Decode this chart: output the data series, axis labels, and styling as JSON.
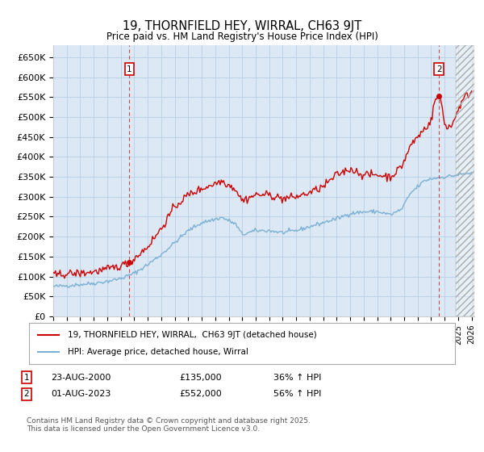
{
  "title": "19, THORNFIELD HEY, WIRRAL, CH63 9JT",
  "subtitle": "Price paid vs. HM Land Registry's House Price Index (HPI)",
  "ylim": [
    0,
    680000
  ],
  "yticks": [
    0,
    50000,
    100000,
    150000,
    200000,
    250000,
    300000,
    350000,
    400000,
    450000,
    500000,
    550000,
    600000,
    650000
  ],
  "ytick_labels": [
    "£0",
    "£50K",
    "£100K",
    "£150K",
    "£200K",
    "£250K",
    "£300K",
    "£350K",
    "£400K",
    "£450K",
    "£500K",
    "£550K",
    "£600K",
    "£650K"
  ],
  "xlim_start": 1995.0,
  "xlim_end": 2026.2,
  "background_color": "#ffffff",
  "plot_bg_color": "#dce9f5",
  "grid_color": "#b8cfe8",
  "red_line_color": "#cc0000",
  "blue_line_color": "#7ab0d4",
  "sale1_date": 2000.647,
  "sale1_price": 135000,
  "sale1_label": "1",
  "sale2_date": 2023.583,
  "sale2_price": 552000,
  "sale2_label": "2",
  "legend_line1": "19, THORNFIELD HEY, WIRRAL,  CH63 9JT (detached house)",
  "legend_line2": "HPI: Average price, detached house, Wirral",
  "footer": "Contains HM Land Registry data © Crown copyright and database right 2025.\nThis data is licensed under the Open Government Licence v3.0.",
  "hpi_anchors_years": [
    1995.0,
    1996.0,
    1997.0,
    1998.0,
    1999.0,
    2000.0,
    2001.0,
    2002.0,
    2003.0,
    2004.0,
    2005.0,
    2006.0,
    2007.5,
    2008.5,
    2009.0,
    2010.0,
    2011.0,
    2012.0,
    2013.0,
    2014.0,
    2015.0,
    2016.0,
    2017.0,
    2018.0,
    2019.0,
    2020.0,
    2020.8,
    2021.5,
    2022.5,
    2023.0,
    2023.5,
    2024.0,
    2024.5,
    2025.0,
    2025.5,
    2026.0
  ],
  "hpi_anchors_vals": [
    75000,
    77000,
    80000,
    83000,
    88000,
    95000,
    108000,
    130000,
    155000,
    185000,
    215000,
    235000,
    248000,
    232000,
    205000,
    215000,
    215000,
    210000,
    215000,
    225000,
    235000,
    245000,
    258000,
    262000,
    263000,
    255000,
    268000,
    310000,
    340000,
    345000,
    348000,
    350000,
    352000,
    355000,
    357000,
    360000
  ],
  "prop_anchors_years": [
    1995.0,
    1996.0,
    1997.0,
    1998.0,
    1999.0,
    2000.0,
    2000.647,
    2001.0,
    2002.0,
    2003.0,
    2004.0,
    2005.0,
    2006.0,
    2007.5,
    2008.5,
    2009.0,
    2010.0,
    2011.0,
    2012.0,
    2013.0,
    2014.0,
    2015.0,
    2016.0,
    2017.0,
    2018.0,
    2019.0,
    2020.0,
    2020.8,
    2021.5,
    2022.0,
    2022.5,
    2023.0,
    2023.3,
    2023.583,
    2023.8,
    2024.0,
    2024.5,
    2025.0,
    2025.5,
    2026.0
  ],
  "prop_anchors_vals": [
    103000,
    107000,
    108000,
    112000,
    118000,
    127000,
    135000,
    145000,
    175000,
    220000,
    275000,
    305000,
    320000,
    340000,
    320000,
    290000,
    305000,
    305000,
    295000,
    300000,
    310000,
    325000,
    355000,
    370000,
    355000,
    355000,
    350000,
    375000,
    430000,
    450000,
    470000,
    490000,
    545000,
    552000,
    530000,
    480000,
    475000,
    520000,
    550000,
    565000
  ]
}
